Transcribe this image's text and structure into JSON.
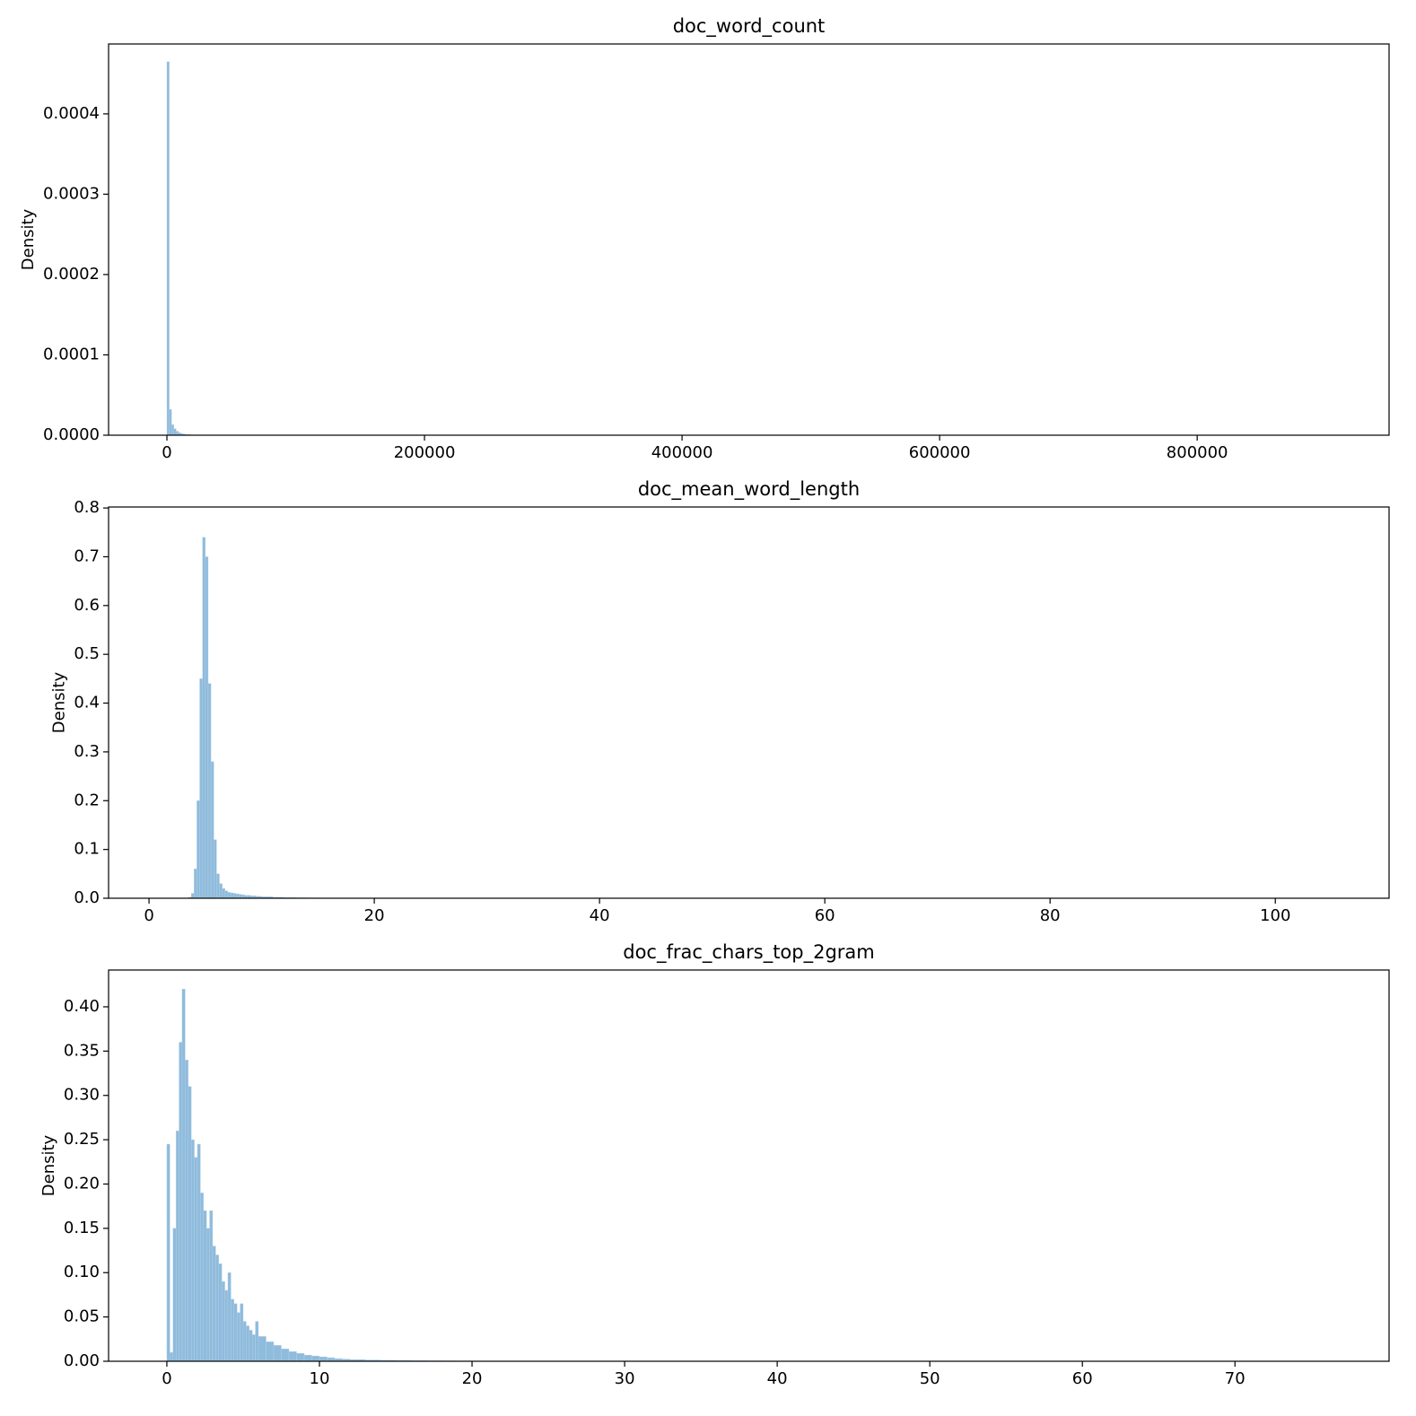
{
  "chart_data": [
    {
      "type": "histogram",
      "title": "doc_word_count",
      "ylabel": "Density",
      "color": "#8fbbdc",
      "bins": [
        0,
        1800,
        3600,
        5400,
        7200,
        9000,
        10800,
        12600,
        14400,
        16200,
        18000
      ],
      "values": [
        0.000465,
        3.2e-05,
        1.3e-05,
        8e-06,
        5e-06,
        3e-06,
        2e-06,
        1.5e-06,
        1e-06,
        8e-07
      ],
      "xlim": [
        -45300,
        949000
      ],
      "ylim": [
        0,
        0.000487
      ],
      "xticks": [
        0,
        200000,
        400000,
        600000,
        800000
      ],
      "yticks": [
        {
          "value": 0,
          "label": "0.0000"
        },
        {
          "value": 0.0001,
          "label": "0.0001"
        },
        {
          "value": 0.0002,
          "label": "0.0002"
        },
        {
          "value": 0.0003,
          "label": "0.0003"
        },
        {
          "value": 0.0004,
          "label": "0.0004"
        }
      ]
    },
    {
      "type": "histogram",
      "title": "doc_mean_word_length",
      "ylabel": "Density",
      "color": "#8fbbdc",
      "bins": [
        3.5,
        3.75,
        4,
        4.25,
        4.5,
        4.75,
        5,
        5.25,
        5.5,
        5.75,
        6,
        6.25,
        6.5,
        6.75,
        7,
        7.25,
        7.5,
        7.75,
        8,
        8.25,
        8.5,
        8.75,
        9,
        9.25,
        9.5,
        9.75,
        10,
        11,
        12,
        13,
        14,
        15
      ],
      "values": [
        0.002,
        0.01,
        0.06,
        0.2,
        0.45,
        0.74,
        0.7,
        0.44,
        0.28,
        0.12,
        0.05,
        0.03,
        0.02,
        0.015,
        0.012,
        0.011,
        0.01,
        0.009,
        0.008,
        0.007,
        0.006,
        0.006,
        0.005,
        0.005,
        0.004,
        0.004,
        0.003,
        0.002,
        0.0015,
        0.001,
        0.0008
      ],
      "xlim": [
        -3.59,
        110.1
      ],
      "ylim": [
        0,
        0.802
      ],
      "xticks": [
        0,
        20,
        40,
        60,
        80,
        100
      ],
      "yticks": [
        {
          "value": 0,
          "label": "0.0"
        },
        0.1,
        0.2,
        0.3,
        0.4,
        0.5,
        0.6,
        0.7,
        0.8
      ]
    },
    {
      "type": "histogram",
      "title": "doc_frac_chars_top_2gram",
      "ylabel": "Density",
      "color": "#8fbbdc",
      "bins": [
        0,
        0.2,
        0.4,
        0.6,
        0.8,
        1,
        1.2,
        1.4,
        1.6,
        1.8,
        2,
        2.2,
        2.4,
        2.6,
        2.8,
        3,
        3.2,
        3.4,
        3.6,
        3.8,
        4,
        4.2,
        4.4,
        4.6,
        4.8,
        5,
        5.2,
        5.4,
        5.6,
        5.8,
        6,
        6.5,
        7,
        7.5,
        8,
        8.5,
        9,
        9.5,
        10,
        10.5,
        11,
        11.5,
        12,
        13,
        14,
        15,
        16,
        17,
        18,
        19,
        20
      ],
      "values": [
        0.245,
        0.01,
        0.15,
        0.26,
        0.36,
        0.42,
        0.34,
        0.31,
        0.25,
        0.23,
        0.245,
        0.19,
        0.17,
        0.15,
        0.17,
        0.13,
        0.12,
        0.11,
        0.09,
        0.08,
        0.1,
        0.07,
        0.065,
        0.055,
        0.065,
        0.045,
        0.04,
        0.035,
        0.03,
        0.045,
        0.028,
        0.022,
        0.018,
        0.014,
        0.011,
        0.009,
        0.007,
        0.006,
        0.005,
        0.004,
        0.003,
        0.0025,
        0.002,
        0.0015,
        0.0012,
        0.001,
        0.0008,
        0.0006,
        0.0005,
        0.0004
      ],
      "xlim": [
        -3.82,
        80.1
      ],
      "ylim": [
        0,
        0.4415
      ],
      "xticks": [
        0,
        10,
        20,
        30,
        40,
        50,
        60,
        70
      ],
      "yticks": [
        {
          "value": 0,
          "label": "0.00"
        },
        0.05,
        {
          "value": 0.1,
          "label": "0.10"
        },
        0.15,
        {
          "value": 0.2,
          "label": "0.20"
        },
        0.25,
        {
          "value": 0.3,
          "label": "0.30"
        },
        0.35,
        {
          "value": 0.4,
          "label": "0.40"
        }
      ]
    }
  ]
}
